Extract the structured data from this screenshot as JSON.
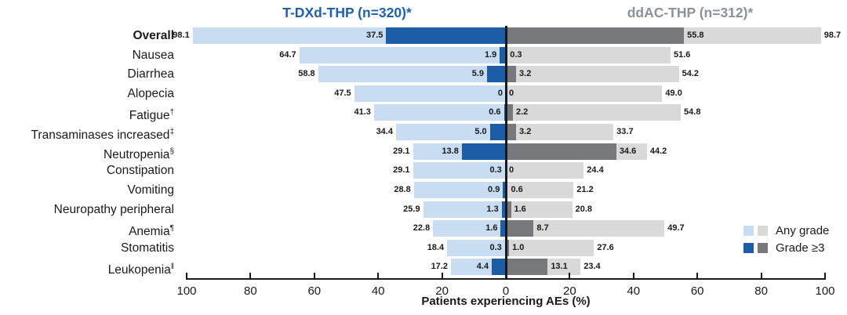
{
  "chart_data": {
    "type": "bar",
    "subtype": "tornado-diverging",
    "title_left": "T-DXd-THP (n=320)*",
    "title_right": "ddAC-THP (n=312)*",
    "xlabel": "Patients experiencing AEs (%)",
    "axis_ticks": [
      "100",
      "80",
      "60",
      "40",
      "20",
      "0",
      "20",
      "40",
      "60",
      "80",
      "100"
    ],
    "xlim_per_side": [
      0,
      100
    ],
    "grid": false,
    "legend_position": "bottom-right",
    "legend": [
      {
        "label": "Any grade",
        "swatches": [
          "light_blue",
          "light_gray"
        ]
      },
      {
        "label": "Grade ≥3",
        "swatches": [
          "dark_blue",
          "dark_gray"
        ]
      }
    ],
    "colors": {
      "light_blue": "#c8ddf1",
      "dark_blue": "#1d5ca7",
      "light_gray": "#d9d9d9",
      "dark_gray": "#76787c",
      "title_left_color": "#1f5fad",
      "title_right_color": "#8b9198",
      "axis_color": "#1a1a1a"
    },
    "series_note": "left side = T-DXd-THP, right side = ddAC-THP; values are % of patients",
    "rows": [
      {
        "label": "Overall",
        "sup": "",
        "bold": true,
        "left_any": "98.1",
        "left_g3": "37.5",
        "right_g3": "55.8",
        "right_any": "98.7"
      },
      {
        "label": "Nausea",
        "sup": "",
        "bold": false,
        "left_any": "64.7",
        "left_g3": "1.9",
        "right_g3": "0.3",
        "right_any": "51.6"
      },
      {
        "label": "Diarrhea",
        "sup": "",
        "bold": false,
        "left_any": "58.8",
        "left_g3": "5.9",
        "right_g3": "3.2",
        "right_any": "54.2"
      },
      {
        "label": "Alopecia",
        "sup": "",
        "bold": false,
        "left_any": "47.5",
        "left_g3": "0",
        "right_g3": "0",
        "right_any": "49.0"
      },
      {
        "label": "Fatigue",
        "sup": "†",
        "bold": false,
        "left_any": "41.3",
        "left_g3": "0.6",
        "right_g3": "2.2",
        "right_any": "54.8"
      },
      {
        "label": "Transaminases increased",
        "sup": "‡",
        "bold": false,
        "left_any": "34.4",
        "left_g3": "5.0",
        "right_g3": "3.2",
        "right_any": "33.7"
      },
      {
        "label": "Neutropenia",
        "sup": "§",
        "bold": false,
        "left_any": "29.1",
        "left_g3": "13.8",
        "right_g3": "34.6",
        "right_any": "44.2"
      },
      {
        "label": "Constipation",
        "sup": "",
        "bold": false,
        "left_any": "29.1",
        "left_g3": "0.3",
        "right_g3": "0",
        "right_any": "24.4"
      },
      {
        "label": "Vomiting",
        "sup": "",
        "bold": false,
        "left_any": "28.8",
        "left_g3": "0.9",
        "right_g3": "0.6",
        "right_any": "21.2"
      },
      {
        "label": "Neuropathy peripheral",
        "sup": "",
        "bold": false,
        "left_any": "25.9",
        "left_g3": "1.3",
        "right_g3": "1.6",
        "right_any": "20.8"
      },
      {
        "label": "Anemia",
        "sup": "¶",
        "bold": false,
        "left_any": "22.8",
        "left_g3": "1.6",
        "right_g3": "8.7",
        "right_any": "49.7"
      },
      {
        "label": "Stomatitis",
        "sup": "",
        "bold": false,
        "left_any": "18.4",
        "left_g3": "0.3",
        "right_g3": "1.0",
        "right_any": "27.6"
      },
      {
        "label": "Leukopenia",
        "sup": "‖",
        "bold": false,
        "left_any": "17.2",
        "left_g3": "4.4",
        "right_g3": "13.1",
        "right_any": "23.4"
      }
    ]
  }
}
